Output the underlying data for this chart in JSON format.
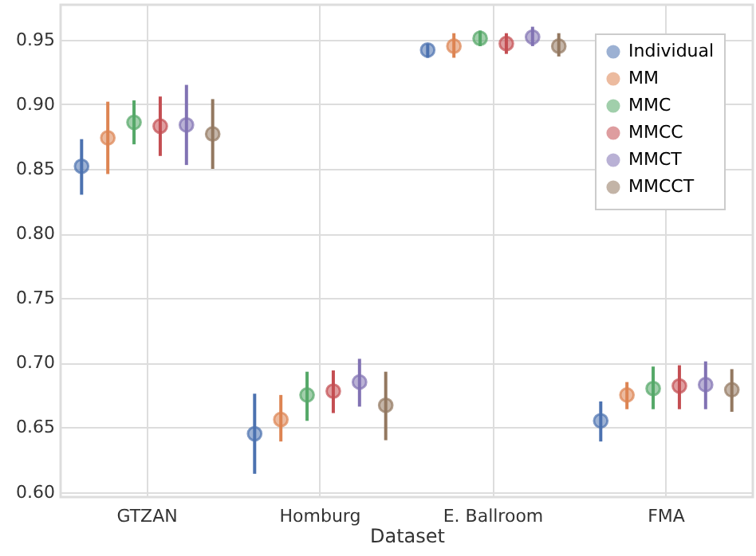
{
  "chart_data": {
    "type": "scatter",
    "xlabel": "Dataset",
    "categories": [
      "GTZAN",
      "Homburg",
      "E. Ballroom",
      "FMA"
    ],
    "ylim": [
      0.596,
      0.977
    ],
    "yticks": [
      {
        "value": 0.6,
        "label": "0.60"
      },
      0.65,
      {
        "value": 0.7,
        "label": "0.70"
      },
      0.75,
      {
        "value": 0.8,
        "label": "0.80"
      },
      0.85,
      {
        "value": 0.9,
        "label": "0.90"
      },
      0.95
    ],
    "grid": true,
    "legend": "top right",
    "marker": "circle",
    "series": [
      {
        "name": "Individual",
        "color": "#4c72b0",
        "values": [
          0.852,
          0.645,
          0.942,
          0.655
        ],
        "errors": [
          [
            0.83,
            0.873
          ],
          [
            0.614,
            0.676
          ],
          [
            0.936,
            0.947
          ],
          [
            0.639,
            0.67
          ]
        ]
      },
      {
        "name": "MM",
        "color": "#dd8452",
        "values": [
          0.874,
          0.656,
          0.945,
          0.675
        ],
        "errors": [
          [
            0.846,
            0.902
          ],
          [
            0.639,
            0.675
          ],
          [
            0.936,
            0.955
          ],
          [
            0.664,
            0.685
          ]
        ]
      },
      {
        "name": "MMC",
        "color": "#55a868",
        "values": [
          0.886,
          0.675,
          0.951,
          0.68
        ],
        "errors": [
          [
            0.869,
            0.903
          ],
          [
            0.655,
            0.693
          ],
          [
            0.945,
            0.957
          ],
          [
            0.664,
            0.697
          ]
        ]
      },
      {
        "name": "MMCC",
        "color": "#c44e52",
        "values": [
          0.883,
          0.678,
          0.947,
          0.682
        ],
        "errors": [
          [
            0.86,
            0.906
          ],
          [
            0.661,
            0.694
          ],
          [
            0.939,
            0.955
          ],
          [
            0.664,
            0.698
          ]
        ]
      },
      {
        "name": "MMCT",
        "color": "#8172b3",
        "values": [
          0.884,
          0.685,
          0.952,
          0.683
        ],
        "errors": [
          [
            0.853,
            0.915
          ],
          [
            0.666,
            0.703
          ],
          [
            0.945,
            0.96
          ],
          [
            0.664,
            0.701
          ]
        ]
      },
      {
        "name": "MMCCT",
        "color": "#937860",
        "values": [
          0.877,
          0.667,
          0.945,
          0.679
        ],
        "errors": [
          [
            0.85,
            0.904
          ],
          [
            0.64,
            0.693
          ],
          [
            0.937,
            0.955
          ],
          [
            0.662,
            0.695
          ]
        ]
      }
    ]
  }
}
